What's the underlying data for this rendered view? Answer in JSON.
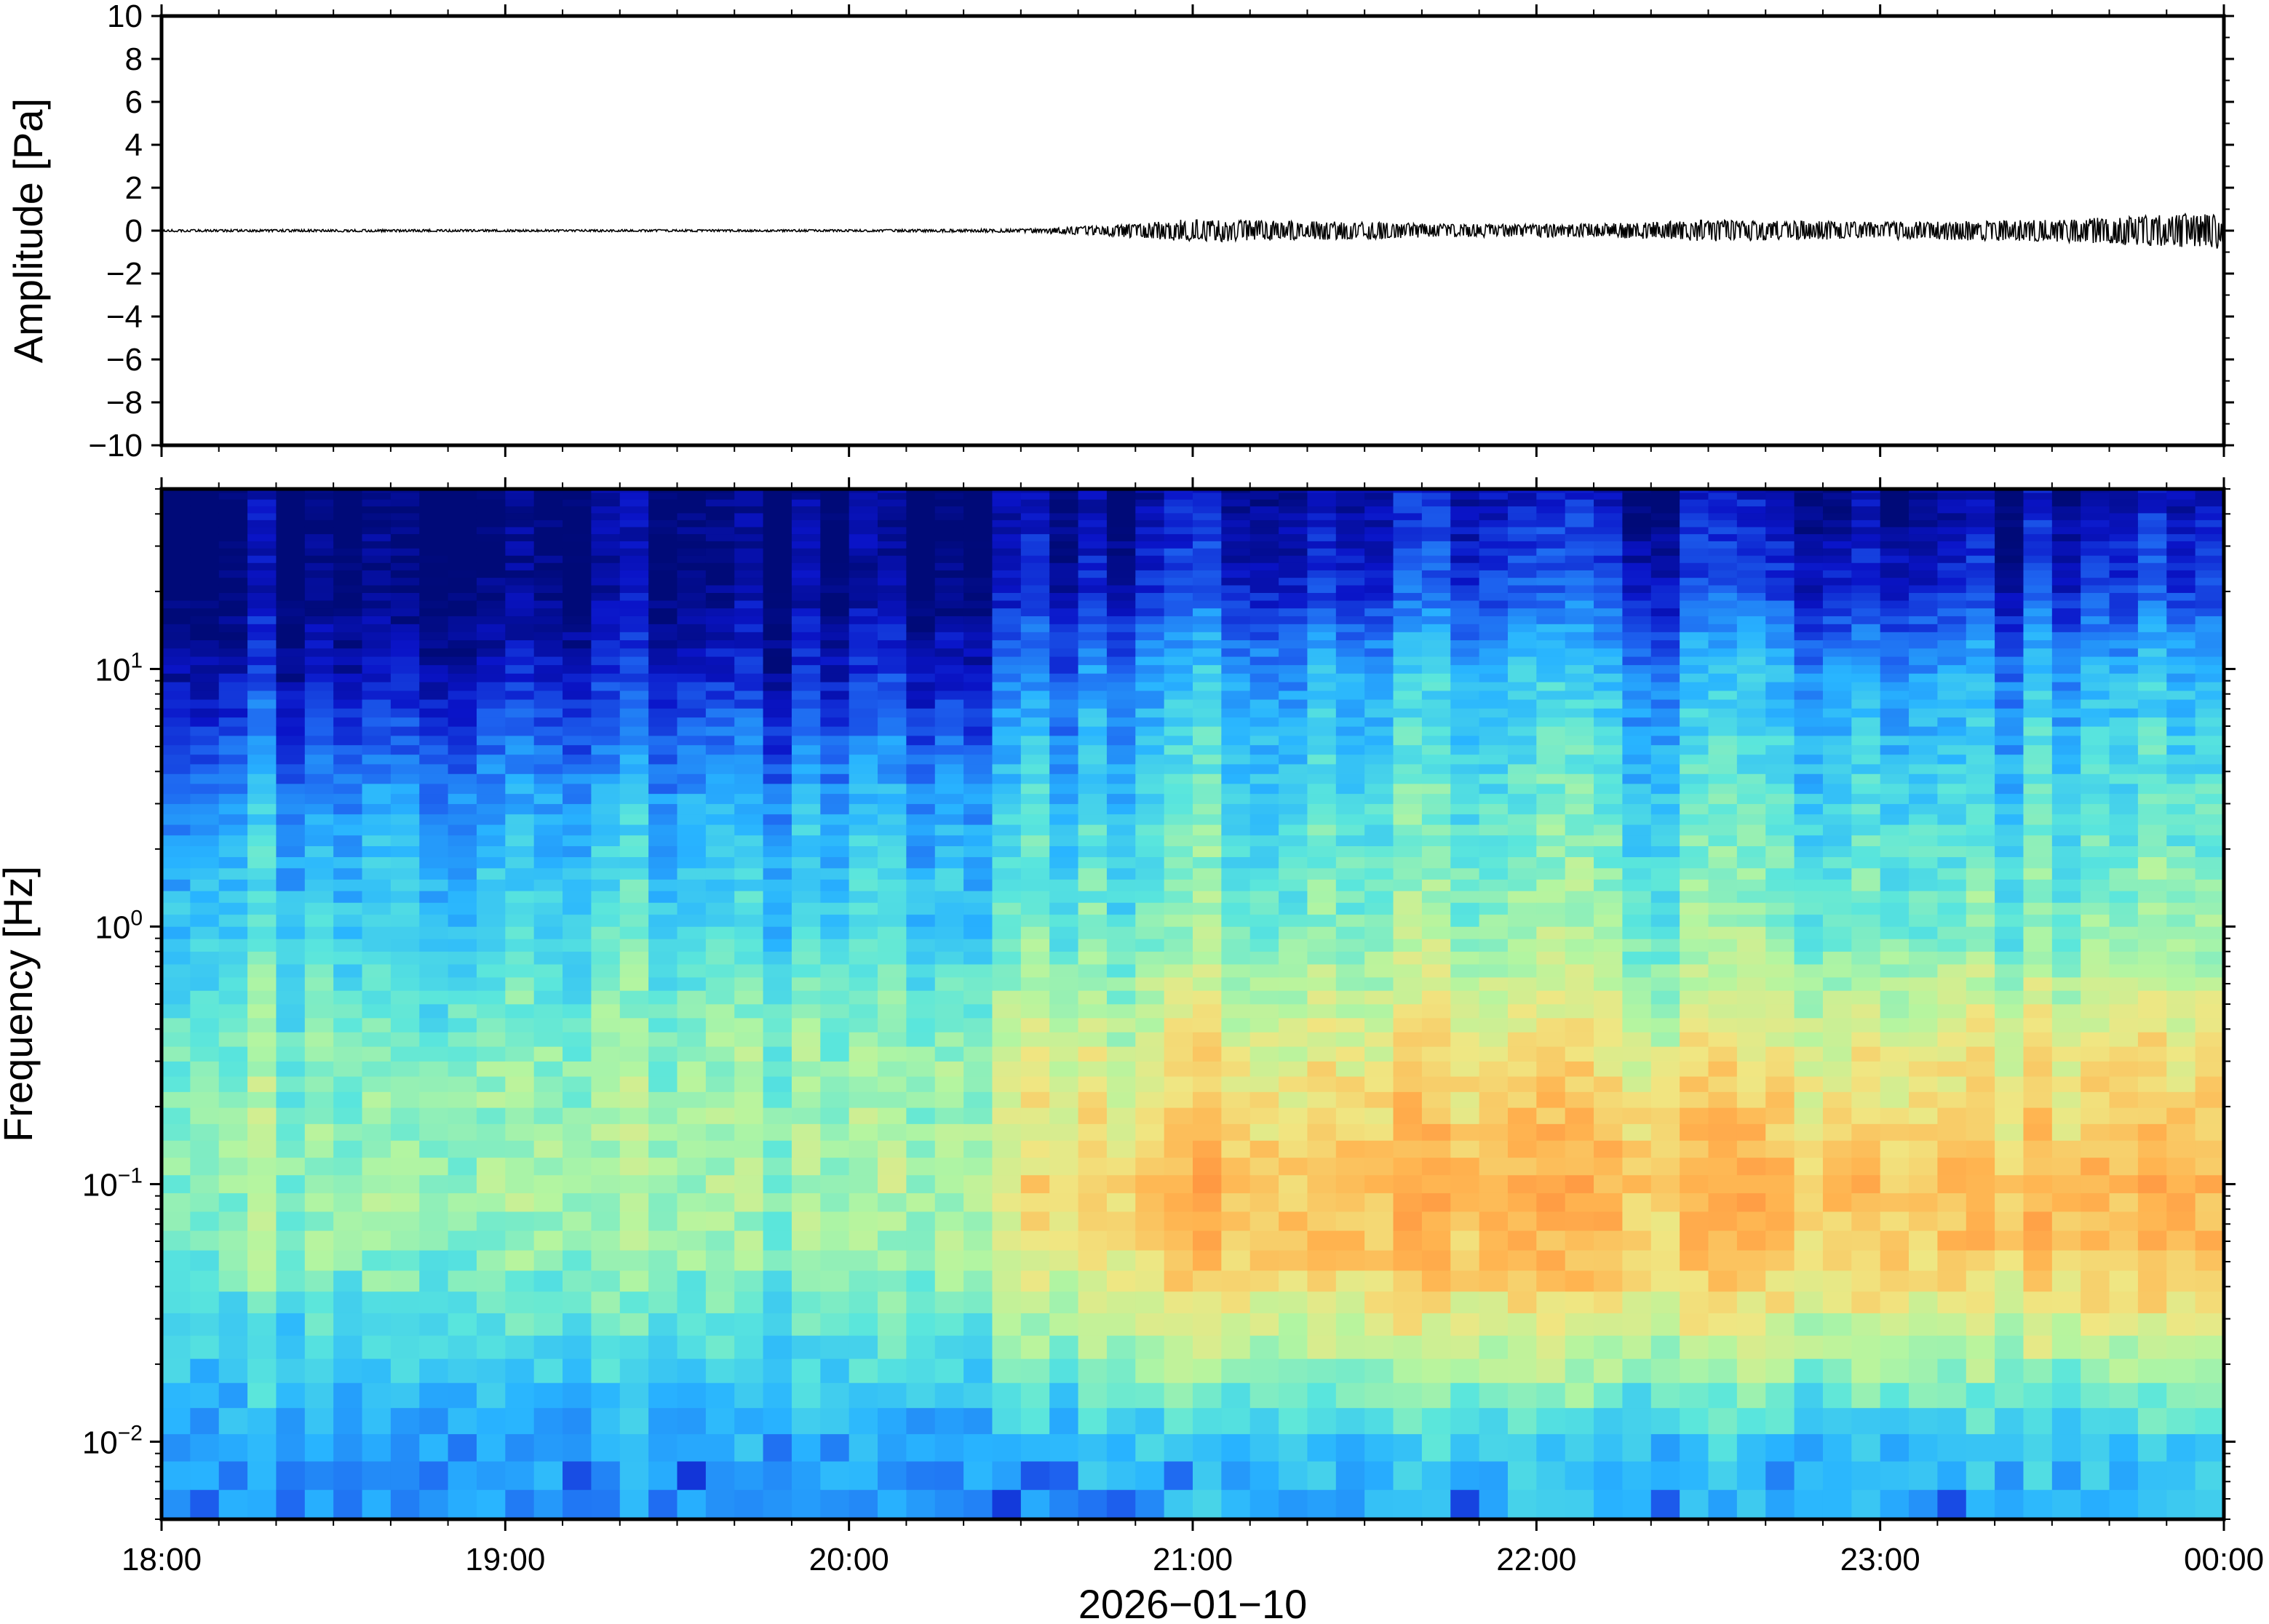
{
  "chart_data": [
    {
      "type": "line",
      "panel": "waveform",
      "ylabel": "Amplitude [Pa]",
      "ylim": [
        -10,
        10
      ],
      "y_ticks": [
        10,
        8,
        6,
        4,
        2,
        0,
        -2,
        -4,
        -6,
        -8,
        -10
      ],
      "y_tick_labels": [
        "10",
        "8",
        "6",
        "4",
        "2",
        "0",
        "−2",
        "−4",
        "−6",
        "−8",
        "−10"
      ],
      "x_range_hours": [
        18,
        24
      ],
      "series": [
        {
          "envelope_x_hours": [
            18.0,
            18.5,
            19.0,
            19.5,
            20.0,
            20.5,
            20.75,
            21.0,
            21.25,
            21.5,
            21.75,
            22.0,
            22.25,
            22.5,
            22.75,
            23.0,
            23.25,
            23.5,
            23.75,
            24.0
          ],
          "envelope_amplitude": [
            0.05,
            0.06,
            0.05,
            0.05,
            0.05,
            0.08,
            0.25,
            0.55,
            0.45,
            0.4,
            0.3,
            0.3,
            0.35,
            0.5,
            0.45,
            0.4,
            0.45,
            0.5,
            0.7,
            0.85
          ]
        }
      ],
      "line_color": "#000000",
      "grid": false
    },
    {
      "type": "heatmap",
      "panel": "spectrogram",
      "ylabel": "Frequency [Hz]",
      "xlabel": "2026−01−10",
      "y_scale": "log",
      "ylim": [
        0.005,
        50
      ],
      "y_ticks": [
        0.01,
        0.1,
        1,
        10
      ],
      "y_tick_labels": [
        {
          "base": "10",
          "exp": "−2"
        },
        {
          "base": "10",
          "exp": "−1"
        },
        {
          "base": "10",
          "exp": "0"
        },
        {
          "base": "10",
          "exp": "1"
        }
      ],
      "x_range_hours": [
        18,
        24
      ],
      "x_ticks_hours": [
        18,
        19,
        20,
        21,
        22,
        23,
        24
      ],
      "x_tick_labels": [
        "18:00",
        "19:00",
        "20:00",
        "21:00",
        "22:00",
        "23:00",
        "00:00"
      ],
      "colormap": [
        "#000a78",
        "#0a14c8",
        "#1e64f0",
        "#28b4ff",
        "#5ae6dc",
        "#b4f5a0",
        "#f0e682",
        "#ffb450",
        "#ff8c3c"
      ],
      "intensity_bands_hz": [
        {
          "freq": 0.005,
          "early": 0.32,
          "late": 0.36
        },
        {
          "freq": 0.01,
          "early": 0.36,
          "late": 0.42
        },
        {
          "freq": 0.02,
          "early": 0.44,
          "late": 0.6
        },
        {
          "freq": 0.05,
          "early": 0.56,
          "late": 0.82
        },
        {
          "freq": 0.1,
          "early": 0.6,
          "late": 0.86
        },
        {
          "freq": 0.3,
          "early": 0.58,
          "late": 0.74
        },
        {
          "freq": 1.0,
          "early": 0.46,
          "late": 0.56
        },
        {
          "freq": 3.0,
          "early": 0.36,
          "late": 0.48
        },
        {
          "freq": 10.0,
          "early": 0.12,
          "late": 0.36
        },
        {
          "freq": 20.0,
          "early": 0.02,
          "late": 0.18
        },
        {
          "freq": 50.0,
          "early": 0.0,
          "late": 0.06
        }
      ],
      "activity_onset_hours": 20.5,
      "grid": false
    }
  ]
}
